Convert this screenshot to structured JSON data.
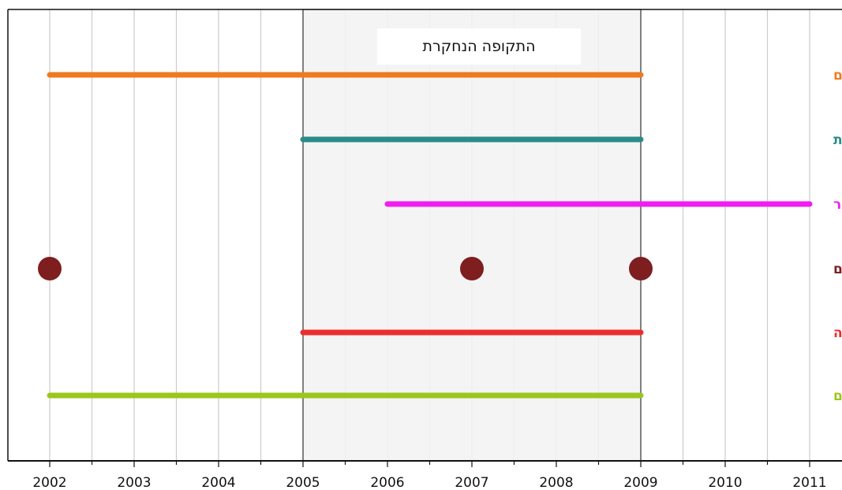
{
  "chart_data": {
    "type": "timeline",
    "x_ticks": [
      "2002",
      "2003",
      "2004",
      "2005",
      "2006",
      "2007",
      "2008",
      "2009",
      "2010",
      "2011"
    ],
    "x_range": [
      2001.5,
      2011.5
    ],
    "grid": true,
    "study_period": {
      "label": "התקופה הנחקרת",
      "start": 2005,
      "end": 2009
    },
    "series": [
      {
        "name": "ההשקעה בכבישים",
        "kind": "range",
        "start": 2002,
        "end": 2009,
        "color": "#F07A1E"
      },
      {
        "name": "האכיפה המשטרתית",
        "kind": "range",
        "start": 2005,
        "end": 2009,
        "color": "#2A8C8A"
      },
      {
        "name": "מזג האוויר",
        "kind": "range",
        "start": 2006,
        "end": 2011,
        "color": "#F21CF0"
      },
      {
        "name": "המאפיינים ההנדסיים",
        "kind": "points",
        "points": [
          2002,
          2007,
          2009
        ],
        "color": "#7E1E1E"
      },
      {
        "name": "ספירות התנועה",
        "kind": "range",
        "start": 2005,
        "end": 2009,
        "color": "#EE2C2C"
      },
      {
        "name": "תאונות הדרכים",
        "kind": "range",
        "start": 2002,
        "end": 2009,
        "color": "#9BC61E"
      }
    ]
  }
}
